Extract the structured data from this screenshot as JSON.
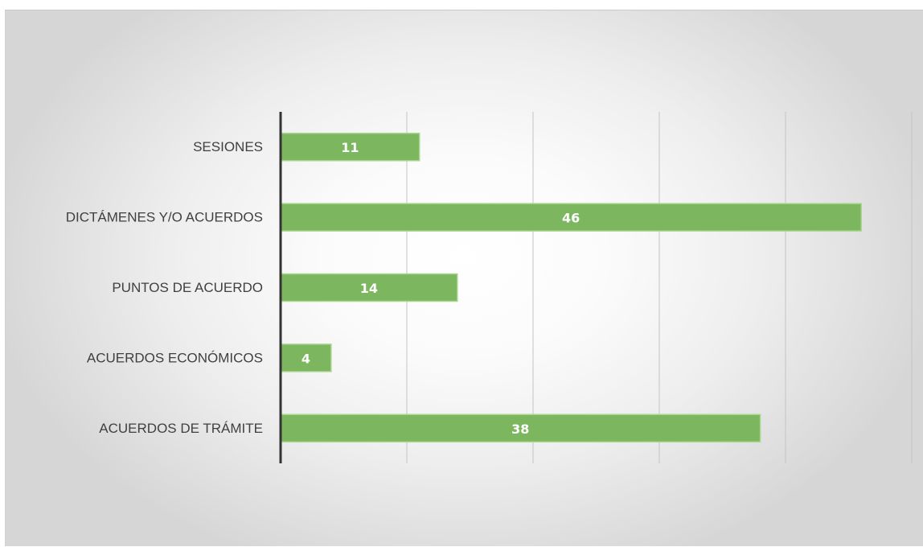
{
  "chart_data": {
    "type": "bar",
    "orientation": "horizontal",
    "categories": [
      "SESIONES",
      "DICTÁMENES Y/O ACUERDOS",
      "PUNTOS DE ACUERDO",
      "ACUERDOS ECONÓMICOS",
      "ACUERDOS DE TRÁMITE"
    ],
    "values": [
      11,
      46,
      14,
      4,
      38
    ],
    "xlim": [
      0,
      50
    ],
    "grid": true,
    "legend": "none",
    "bar_color": "#7cb65e",
    "bar_edge_color": "#a9d58f",
    "label_color": "#404040",
    "value_label_color": "#ffffff"
  }
}
